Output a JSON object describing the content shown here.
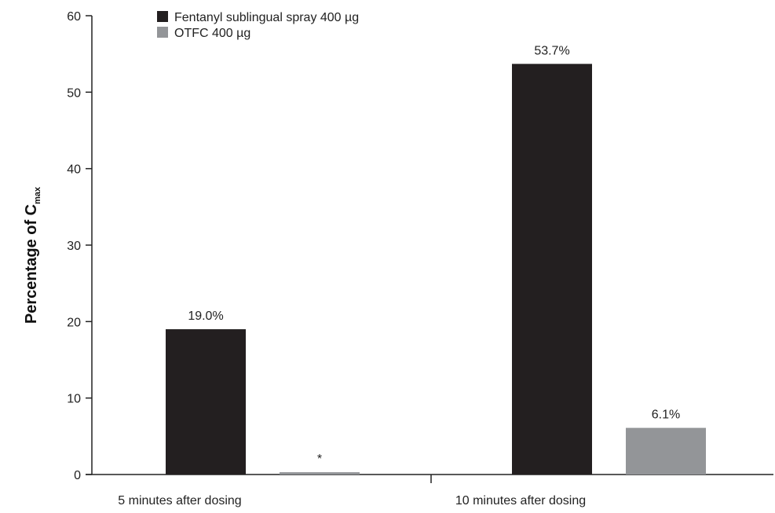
{
  "chart_data": {
    "type": "bar",
    "categories": [
      "5 minutes after dosing",
      "10 minutes after dosing"
    ],
    "series": [
      {
        "name": "Fentanyl sublingual spray 400 µg",
        "values": [
          19.0,
          53.7
        ],
        "labels": [
          "19.0%",
          "53.7%"
        ],
        "color": "#231f20"
      },
      {
        "name": "OTFC 400 µg",
        "values": [
          0.3,
          6.1
        ],
        "labels": [
          "*",
          "6.1%"
        ],
        "color": "#939598"
      }
    ],
    "ylabel": "Percentage of C",
    "ylabel_subscript": "max",
    "ylim": [
      0,
      60
    ],
    "yticks": [
      0,
      10,
      20,
      30,
      40,
      50,
      60
    ],
    "grid": false,
    "legend_position": "top-left"
  }
}
